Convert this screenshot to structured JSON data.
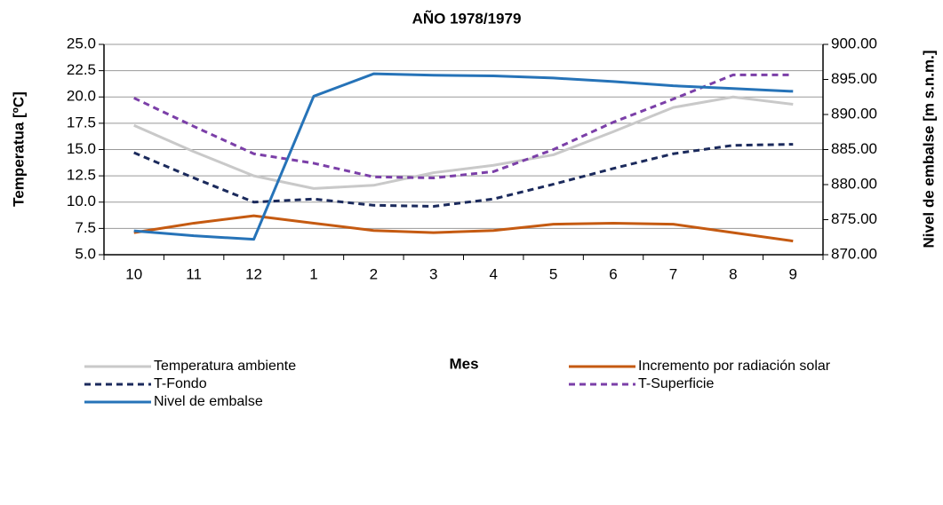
{
  "chart_data": {
    "type": "line",
    "title": "AÑO 1978/1979",
    "x_label": "Mes",
    "y_label": "Temperatua [ºC]",
    "y2_label": "Nivel de embalse [m s.n.m.]",
    "categories": [
      "10",
      "11",
      "12",
      "1",
      "2",
      "3",
      "4",
      "5",
      "6",
      "7",
      "8",
      "9"
    ],
    "ylim": [
      5,
      25
    ],
    "yticks": [
      {
        "value": 5,
        "label": "5.0"
      },
      {
        "value": 7.5,
        "label": "7.5"
      },
      {
        "value": 10,
        "label": "10.0"
      },
      {
        "value": 12.5,
        "label": "12.5"
      },
      {
        "value": 15,
        "label": "15.0"
      },
      {
        "value": 17.5,
        "label": "17.5"
      },
      {
        "value": 20,
        "label": "20.0"
      },
      {
        "value": 22.5,
        "label": "22.5"
      },
      {
        "value": 25,
        "label": "25.0"
      }
    ],
    "y2lim": [
      870,
      900
    ],
    "y2ticks": [
      {
        "value": 870,
        "label": "870.00"
      },
      {
        "value": 875,
        "label": "875.00"
      },
      {
        "value": 880,
        "label": "880.00"
      },
      {
        "value": 885,
        "label": "885.00"
      },
      {
        "value": 890,
        "label": "890.00"
      },
      {
        "value": 895,
        "label": "895.00"
      },
      {
        "value": 900,
        "label": "900.00"
      }
    ],
    "grid": true,
    "series": [
      {
        "name": "Temperatura ambiente",
        "color": "#c9c9c9",
        "dashed": false,
        "values": [
          17.3,
          14.8,
          12.5,
          11.3,
          11.6,
          12.8,
          13.5,
          14.5,
          16.7,
          19.0,
          20.0,
          19.3
        ]
      },
      {
        "name": "Incremento por radiación solar",
        "color": "#c55a11",
        "dashed": false,
        "values": [
          7.1,
          8.0,
          8.7,
          8.0,
          7.3,
          7.1,
          7.3,
          7.9,
          8.0,
          7.9,
          7.1,
          6.3
        ]
      },
      {
        "name": "T-Fondo",
        "color": "#1b2a5c",
        "dashed": true,
        "values": [
          14.7,
          12.3,
          10.0,
          10.3,
          9.7,
          9.6,
          10.3,
          11.7,
          13.2,
          14.6,
          15.4,
          15.5
        ]
      },
      {
        "name": "T-Superficie",
        "color": "#7b3fa8",
        "dashed": true,
        "values": [
          19.9,
          17.2,
          14.6,
          13.7,
          12.4,
          12.3,
          12.9,
          15.0,
          17.6,
          19.8,
          22.1,
          22.1
        ]
      },
      {
        "name": "Nivel de embalse",
        "color": "#2673b8",
        "dashed": false,
        "axis": "y2",
        "values": [
          873.4,
          872.7,
          872.2,
          892.6,
          895.8,
          895.6,
          895.5,
          895.2,
          894.7,
          894.1,
          893.7,
          893.3
        ]
      }
    ]
  }
}
